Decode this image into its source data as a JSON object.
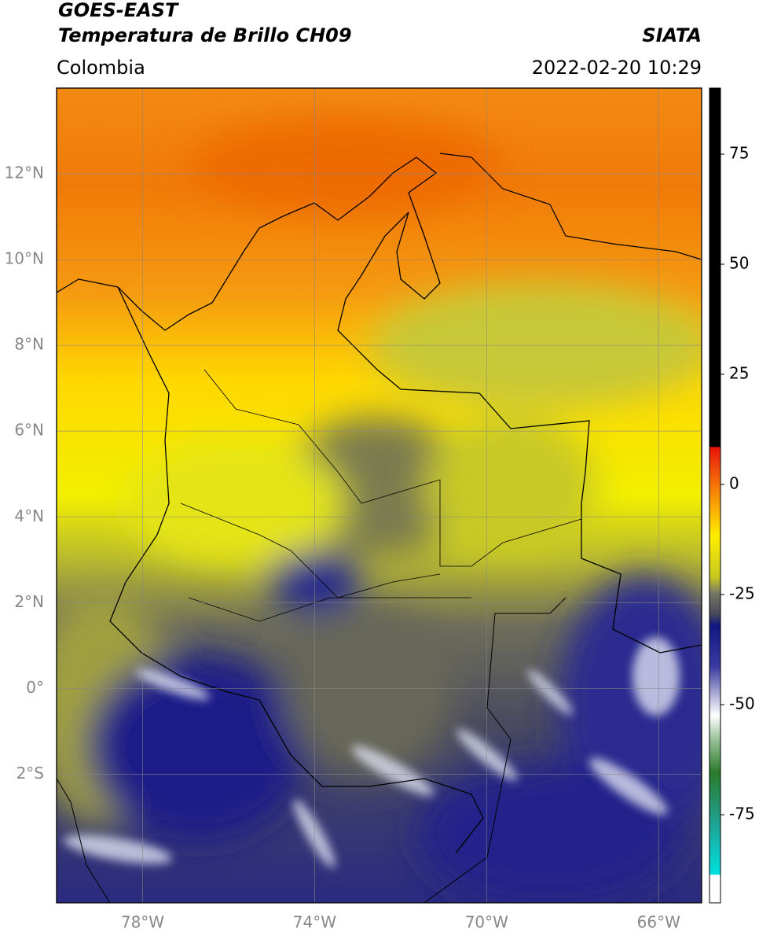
{
  "header": {
    "satellite": "GOES-EAST",
    "product": "Temperatura de Brillo CH09",
    "source": "SIATA",
    "region": "Colombia",
    "datetime": "2022-02-20 10:29"
  },
  "map": {
    "lon_range": [
      -80,
      -65
    ],
    "lat_range": [
      -5,
      14
    ],
    "lon_ticks": [
      {
        "value": -78,
        "label": "78°W"
      },
      {
        "value": -74,
        "label": "74°W"
      },
      {
        "value": -70,
        "label": "70°W"
      },
      {
        "value": -66,
        "label": "66°W"
      }
    ],
    "lat_ticks": [
      {
        "value": 12,
        "label": "12°N"
      },
      {
        "value": 10,
        "label": "10°N"
      },
      {
        "value": 8,
        "label": "8°N"
      },
      {
        "value": 6,
        "label": "6°N"
      },
      {
        "value": 4,
        "label": "4°N"
      },
      {
        "value": 2,
        "label": "2°N"
      },
      {
        "value": 0,
        "label": "0°"
      },
      {
        "value": -2,
        "label": "2°S"
      }
    ]
  },
  "colorbar": {
    "lim": [
      -95,
      90
    ],
    "ticks": [
      75,
      50,
      25,
      0,
      -25,
      -50,
      -75
    ]
  }
}
